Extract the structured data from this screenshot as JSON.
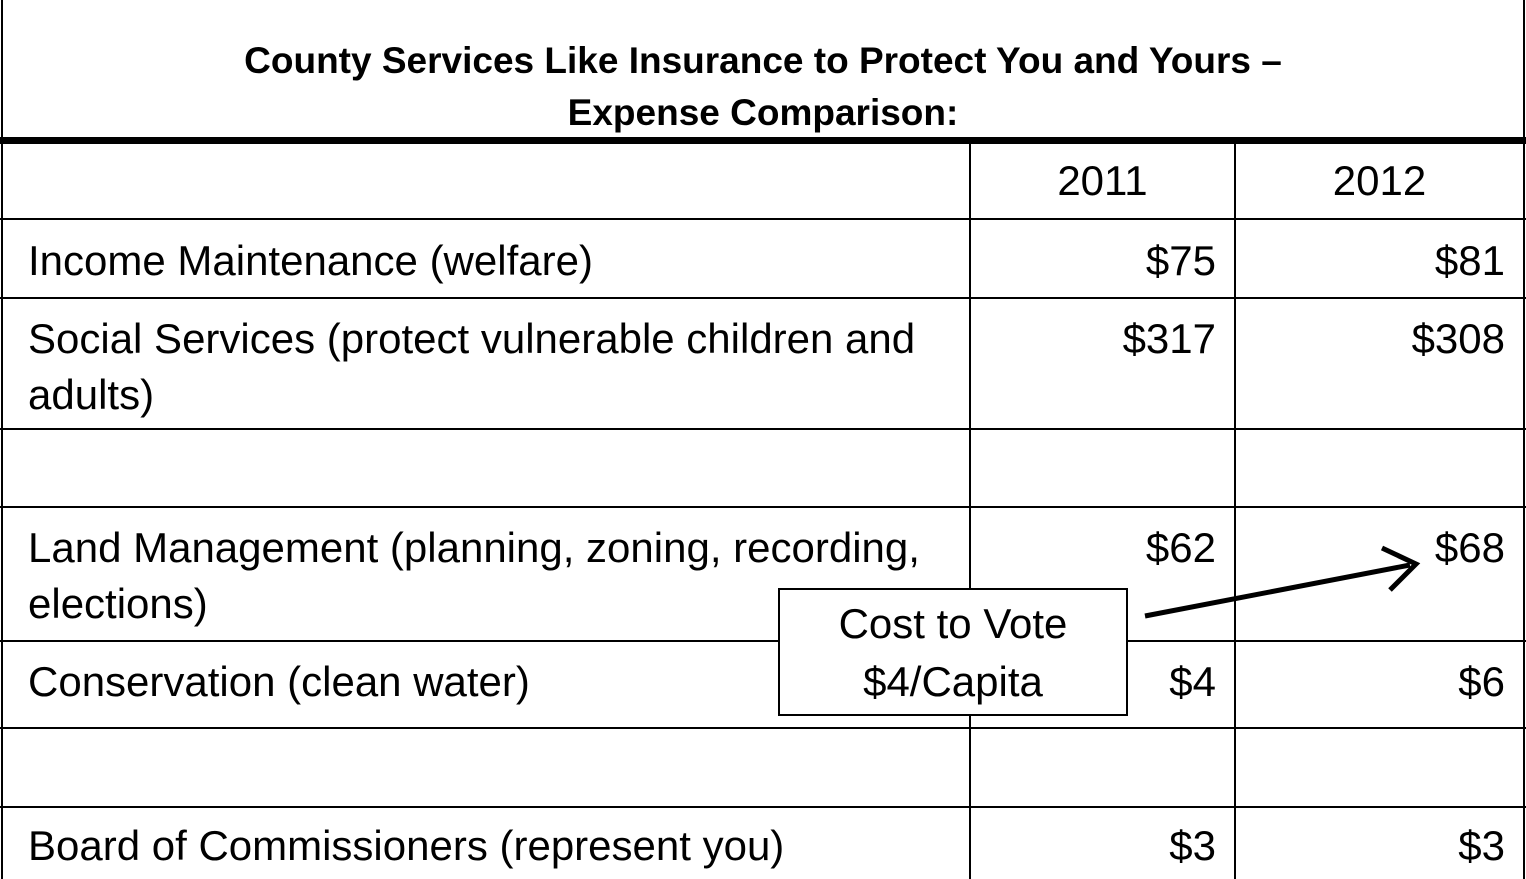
{
  "title_lines": [
    "County Services Like Insurance to Protect You and Yours –",
    "Expense Comparison:"
  ],
  "table": {
    "columns": [
      "2011",
      "2012"
    ],
    "rows": [
      {
        "label": "Income Maintenance (welfare)",
        "values": [
          "$75",
          "$81"
        ]
      },
      {
        "label": "Social Services (protect vulnerable children and adults)",
        "values": [
          "$317",
          "$308"
        ]
      },
      {
        "label": "Land Management (planning, zoning, recording, elections)",
        "values": [
          "$62",
          "$68"
        ]
      },
      {
        "label": "Conservation (clean water)",
        "values": [
          "$4",
          "$6"
        ]
      },
      {
        "label": "Board of Commissioners (represent you)",
        "values": [
          "$3",
          "$3"
        ]
      }
    ]
  },
  "callout": {
    "lines": [
      "Cost to Vote",
      "$4/Capita"
    ]
  }
}
